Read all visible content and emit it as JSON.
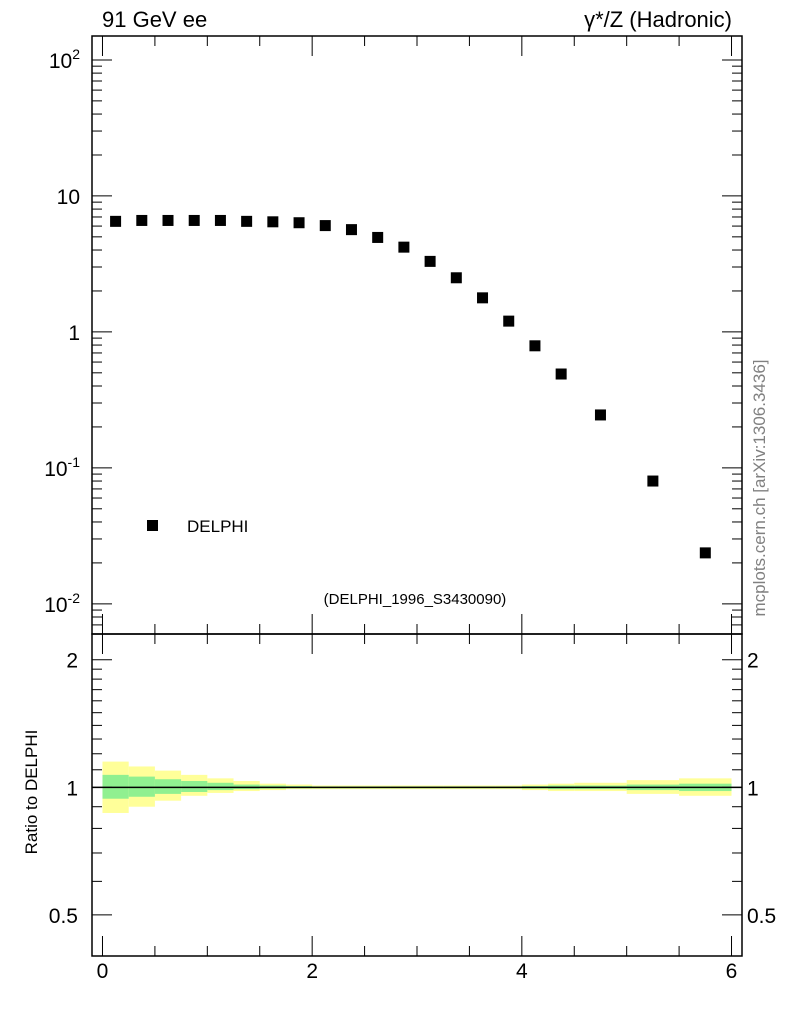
{
  "header": {
    "left_title": "91 GeV ee",
    "right_title": "γ*/Z (Hadronic)"
  },
  "side_note": "mcplots.cern.ch [arXiv:1306.3436]",
  "watermark": "(DELPHI_1996_S3430090)",
  "legend": {
    "label": "DELPHI",
    "marker": "black-square"
  },
  "ratio_axis_label": "Ratio to DELPHI",
  "colors": {
    "data": "#000000",
    "band_inner": "#90f090",
    "band_outer": "#ffff99",
    "watermark": "#999999"
  },
  "chart_data": [
    {
      "type": "scatter",
      "panel": "main",
      "yscale": "log",
      "xlim": [
        -0.1,
        6.1
      ],
      "ylim": [
        0.006,
        150
      ],
      "ytick_labels": [
        "10^-2",
        "10^-1",
        "1",
        "10",
        "10^2"
      ],
      "legend_placement": "lower-left",
      "series": [
        {
          "name": "DELPHI",
          "x": [
            0.125,
            0.375,
            0.625,
            0.875,
            1.125,
            1.375,
            1.625,
            1.875,
            2.125,
            2.375,
            2.625,
            2.875,
            3.125,
            3.375,
            3.625,
            3.875,
            4.125,
            4.375,
            4.75,
            5.25,
            5.75
          ],
          "y": [
            6.5,
            6.6,
            6.6,
            6.6,
            6.6,
            6.5,
            6.45,
            6.35,
            6.05,
            5.65,
            4.95,
            4.2,
            3.3,
            2.5,
            1.78,
            1.2,
            0.79,
            0.49,
            0.245,
            0.08,
            0.0237
          ]
        }
      ]
    },
    {
      "type": "area",
      "panel": "ratio",
      "xlim": [
        -0.1,
        6.1
      ],
      "ylim": [
        0.4,
        2.3
      ],
      "xtick_labels": [
        "0",
        "2",
        "4",
        "6"
      ],
      "ytick_labels": [
        "0.5",
        "1",
        "2"
      ],
      "reference_line": 1,
      "bins": [
        [
          0.0,
          0.25
        ],
        [
          0.25,
          0.5
        ],
        [
          0.5,
          0.75
        ],
        [
          0.75,
          1.0
        ],
        [
          1.0,
          1.25
        ],
        [
          1.25,
          1.5
        ],
        [
          1.5,
          1.75
        ],
        [
          1.75,
          2.0
        ],
        [
          2.0,
          2.25
        ],
        [
          2.25,
          2.5
        ],
        [
          2.5,
          2.75
        ],
        [
          2.75,
          3.0
        ],
        [
          3.0,
          3.25
        ],
        [
          3.25,
          3.5
        ],
        [
          3.5,
          3.75
        ],
        [
          3.75,
          4.0
        ],
        [
          4.0,
          4.25
        ],
        [
          4.25,
          4.5
        ],
        [
          4.5,
          5.0
        ],
        [
          5.0,
          5.5
        ],
        [
          5.5,
          6.0
        ]
      ],
      "series": [
        {
          "name": "",
          "low": [
            0.87,
            0.9,
            0.93,
            0.955,
            0.97,
            0.98,
            0.985,
            0.99,
            0.99,
            0.99,
            0.99,
            0.99,
            0.99,
            0.99,
            0.99,
            0.99,
            0.985,
            0.98,
            0.98,
            0.965,
            0.955
          ],
          "high": [
            1.15,
            1.12,
            1.095,
            1.07,
            1.05,
            1.035,
            1.02,
            1.015,
            1.01,
            1.01,
            1.01,
            1.01,
            1.01,
            1.01,
            1.01,
            1.01,
            1.015,
            1.02,
            1.025,
            1.04,
            1.05
          ]
        },
        {
          "name": "",
          "low": [
            0.94,
            0.95,
            0.965,
            0.975,
            0.985,
            0.99,
            0.993,
            0.995,
            0.995,
            0.995,
            0.995,
            0.995,
            0.995,
            0.995,
            0.995,
            0.995,
            0.993,
            0.99,
            0.99,
            0.985,
            0.98
          ],
          "high": [
            1.07,
            1.06,
            1.045,
            1.035,
            1.025,
            1.015,
            1.01,
            1.007,
            1.005,
            1.005,
            1.005,
            1.005,
            1.005,
            1.005,
            1.005,
            1.005,
            1.007,
            1.01,
            1.01,
            1.015,
            1.02
          ]
        }
      ]
    }
  ]
}
